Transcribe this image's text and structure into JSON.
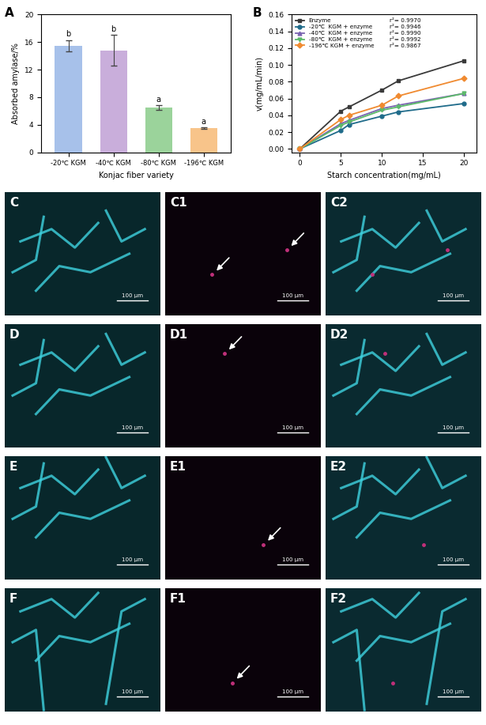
{
  "chart_data": [
    {
      "type": "bar",
      "panel_label": "A",
      "x_label": "Konjac fiber variety",
      "y_label": "Absorbed amylase/%",
      "categories": [
        "-20℃ KGM",
        "-40℃ KGM",
        "-80℃ KGM",
        "-196℃ KGM"
      ],
      "values": [
        15.5,
        14.8,
        6.5,
        3.5
      ],
      "errors": [
        0.8,
        2.2,
        0.3,
        0.1
      ],
      "annotations": [
        "b",
        "b",
        "a",
        "a"
      ],
      "colors": [
        "#a7c1ea",
        "#c9aedb",
        "#9bd39b",
        "#f8c48a"
      ],
      "ylim": [
        0,
        20
      ],
      "yticks": [
        0,
        4,
        8,
        12,
        16,
        20
      ]
    },
    {
      "type": "line",
      "panel_label": "B",
      "x_label": "Starch concentration(mg/mL)",
      "y_label": "v(mg/mL/min)",
      "x": [
        0,
        5,
        6,
        10,
        12,
        20
      ],
      "series": [
        {
          "name": "Enzyme",
          "r2_label": "r²= 0.9970",
          "color": "#3a3a3a",
          "marker": "square",
          "values": [
            0,
            0.045,
            0.05,
            0.07,
            0.081,
            0.105
          ]
        },
        {
          "name": "-20℃  KGM + enzyme",
          "r2_label": "r²= 0.9946",
          "color": "#1f6b8a",
          "marker": "circle",
          "values": [
            0,
            0.022,
            0.029,
            0.039,
            0.044,
            0.054
          ]
        },
        {
          "name": "-40℃  KGM + enzyme",
          "r2_label": "r²= 0.9990",
          "color": "#7a63b0",
          "marker": "triangle_up",
          "values": [
            0,
            0.03,
            0.034,
            0.048,
            0.052,
            0.066
          ]
        },
        {
          "name": "-80℃  KGM + enzyme",
          "r2_label": "r²= 0.9992",
          "color": "#5cba6a",
          "marker": "triangle_down",
          "values": [
            0,
            0.028,
            0.032,
            0.046,
            0.05,
            0.066
          ]
        },
        {
          "name": "-196℃ KGM + enzyme",
          "r2_label": "r²= 0.9867",
          "color": "#f08a30",
          "marker": "diamond",
          "values": [
            0,
            0.035,
            0.04,
            0.052,
            0.063,
            0.084
          ]
        }
      ],
      "legend": "upper left",
      "xlim": [
        -1,
        21.5
      ],
      "xticks": [
        0,
        5,
        10,
        15,
        20
      ],
      "ylim": [
        -0.004,
        0.16
      ],
      "yticks": [
        {
          "value": 0,
          "label": "0.00"
        },
        {
          "value": 0.02,
          "label": "0.02"
        },
        {
          "value": 0.04,
          "label": "0.04"
        },
        {
          "value": 0.06,
          "label": "0.06"
        },
        {
          "value": 0.08,
          "label": "0.08"
        },
        {
          "value": 0.1,
          "label": "0.10"
        },
        {
          "value": 0.12,
          "label": "0.12"
        },
        {
          "value": 0.14,
          "label": "0.14"
        },
        {
          "value": 0.16,
          "label": "0.16"
        }
      ]
    }
  ],
  "images": {
    "scale_bar": "100 μm",
    "panels": [
      [
        "C",
        "C1",
        "C2"
      ],
      [
        "D",
        "D1",
        "D2"
      ],
      [
        "E",
        "E1",
        "E2"
      ],
      [
        "F",
        "F1",
        "F2"
      ]
    ]
  }
}
